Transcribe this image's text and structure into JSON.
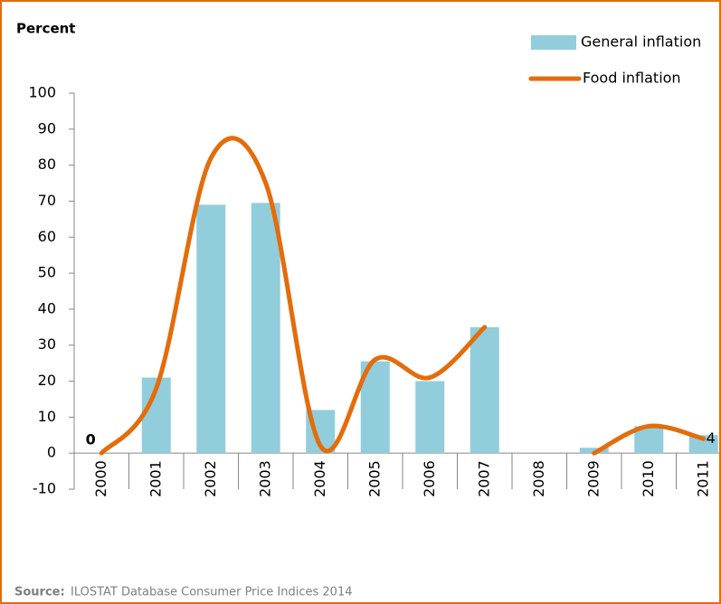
{
  "chart_data": {
    "type": "bar_line",
    "y_title": "Percent",
    "categories": [
      "2000",
      "2001",
      "2002",
      "2003",
      "2004",
      "2005",
      "2006",
      "2007",
      "2008",
      "2009",
      "2010",
      "2011"
    ],
    "series": [
      {
        "name": "General inflation",
        "type": "bar",
        "color": "#92cddc",
        "values": [
          0,
          21,
          69,
          69.5,
          12,
          25.5,
          20,
          35,
          null,
          1.5,
          7.5,
          5
        ]
      },
      {
        "name": "Food inflation",
        "type": "line",
        "smooth": true,
        "color": "#e46c0a",
        "values": [
          0,
          18,
          82,
          75,
          2,
          26,
          21,
          35,
          null,
          0,
          7.5,
          4
        ],
        "value_labels": [
          "0",
          null,
          null,
          null,
          null,
          null,
          null,
          null,
          null,
          null,
          null,
          "4"
        ]
      }
    ],
    "ylim": [
      -10,
      100
    ],
    "yticks": [
      -10,
      0,
      10,
      20,
      30,
      40,
      50,
      60,
      70,
      80,
      90,
      100
    ],
    "legend": "top-right",
    "source_label": "Source:",
    "source": "ILOSTAT Database Consumer Price Indices 2014"
  }
}
